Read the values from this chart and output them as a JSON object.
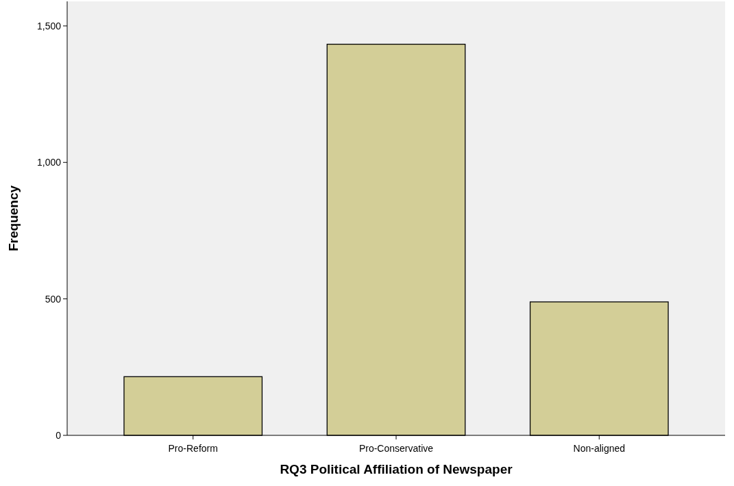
{
  "chart_data": {
    "type": "bar",
    "xlabel": "RQ3 Political Affiliation of Newspaper",
    "ylabel": "Frequency",
    "categories": [
      "Pro-Reform",
      "Pro-Conservative",
      "Non-aligned"
    ],
    "values": [
      215,
      1433,
      489
    ],
    "color": "#d3ce97",
    "ylim": [
      0,
      1590
    ],
    "yticks": [
      0,
      {
        "value": 500,
        "label": "500"
      },
      {
        "value": 1000,
        "label": "1,000"
      },
      {
        "value": 1500,
        "label": "1,500"
      }
    ],
    "grid": false
  }
}
